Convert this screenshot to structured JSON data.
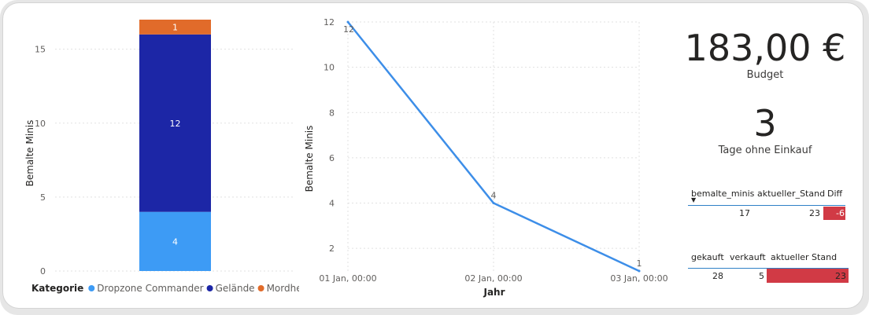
{
  "chart_data": [
    {
      "type": "bar",
      "stacked": true,
      "categories": [
        ""
      ],
      "series": [
        {
          "name": "Dropzone Commander",
          "values": [
            4
          ],
          "color": "#3d9bf5"
        },
        {
          "name": "Gelände",
          "values": [
            12
          ],
          "color": "#1c26a6"
        },
        {
          "name": "Mordheim",
          "values": [
            1
          ],
          "color": "#e16b2a"
        }
      ],
      "ylabel": "Bemalte Minis",
      "ylim": [
        0,
        17
      ],
      "yticks": [
        0,
        5,
        10,
        15
      ],
      "legend_title": "Kategorie",
      "legend_position": "bottom-left",
      "grid": true
    },
    {
      "type": "line",
      "x": [
        "01 Jan, 00:00",
        "02 Jan, 00:00",
        "03 Jan, 00:00"
      ],
      "values": [
        12,
        4,
        1
      ],
      "data_labels": [
        "12",
        "4",
        "1"
      ],
      "color": "#3d8ee8",
      "xlabel": "Jahr",
      "ylabel": "Bemalte Minis",
      "ylim": [
        1,
        12
      ],
      "yticks": [
        2,
        4,
        6,
        8,
        10,
        12
      ],
      "grid": true
    }
  ],
  "kpis": {
    "budget": {
      "value": "183,00 €",
      "label": "Budget"
    },
    "days": {
      "value": "3",
      "label": "Tage ohne Einkauf"
    }
  },
  "table1": {
    "headers": [
      "bemalte_minis",
      "aktueller_Stand",
      "Diff"
    ],
    "sort_indicator": "▼",
    "row": [
      "17",
      "23",
      "-6"
    ],
    "highlight_color": "#d13a45"
  },
  "table2": {
    "headers": [
      "gekauft",
      "verkauft",
      "aktueller Stand"
    ],
    "row": [
      "28",
      "5",
      "23"
    ],
    "highlight_color": "#d13a45"
  }
}
